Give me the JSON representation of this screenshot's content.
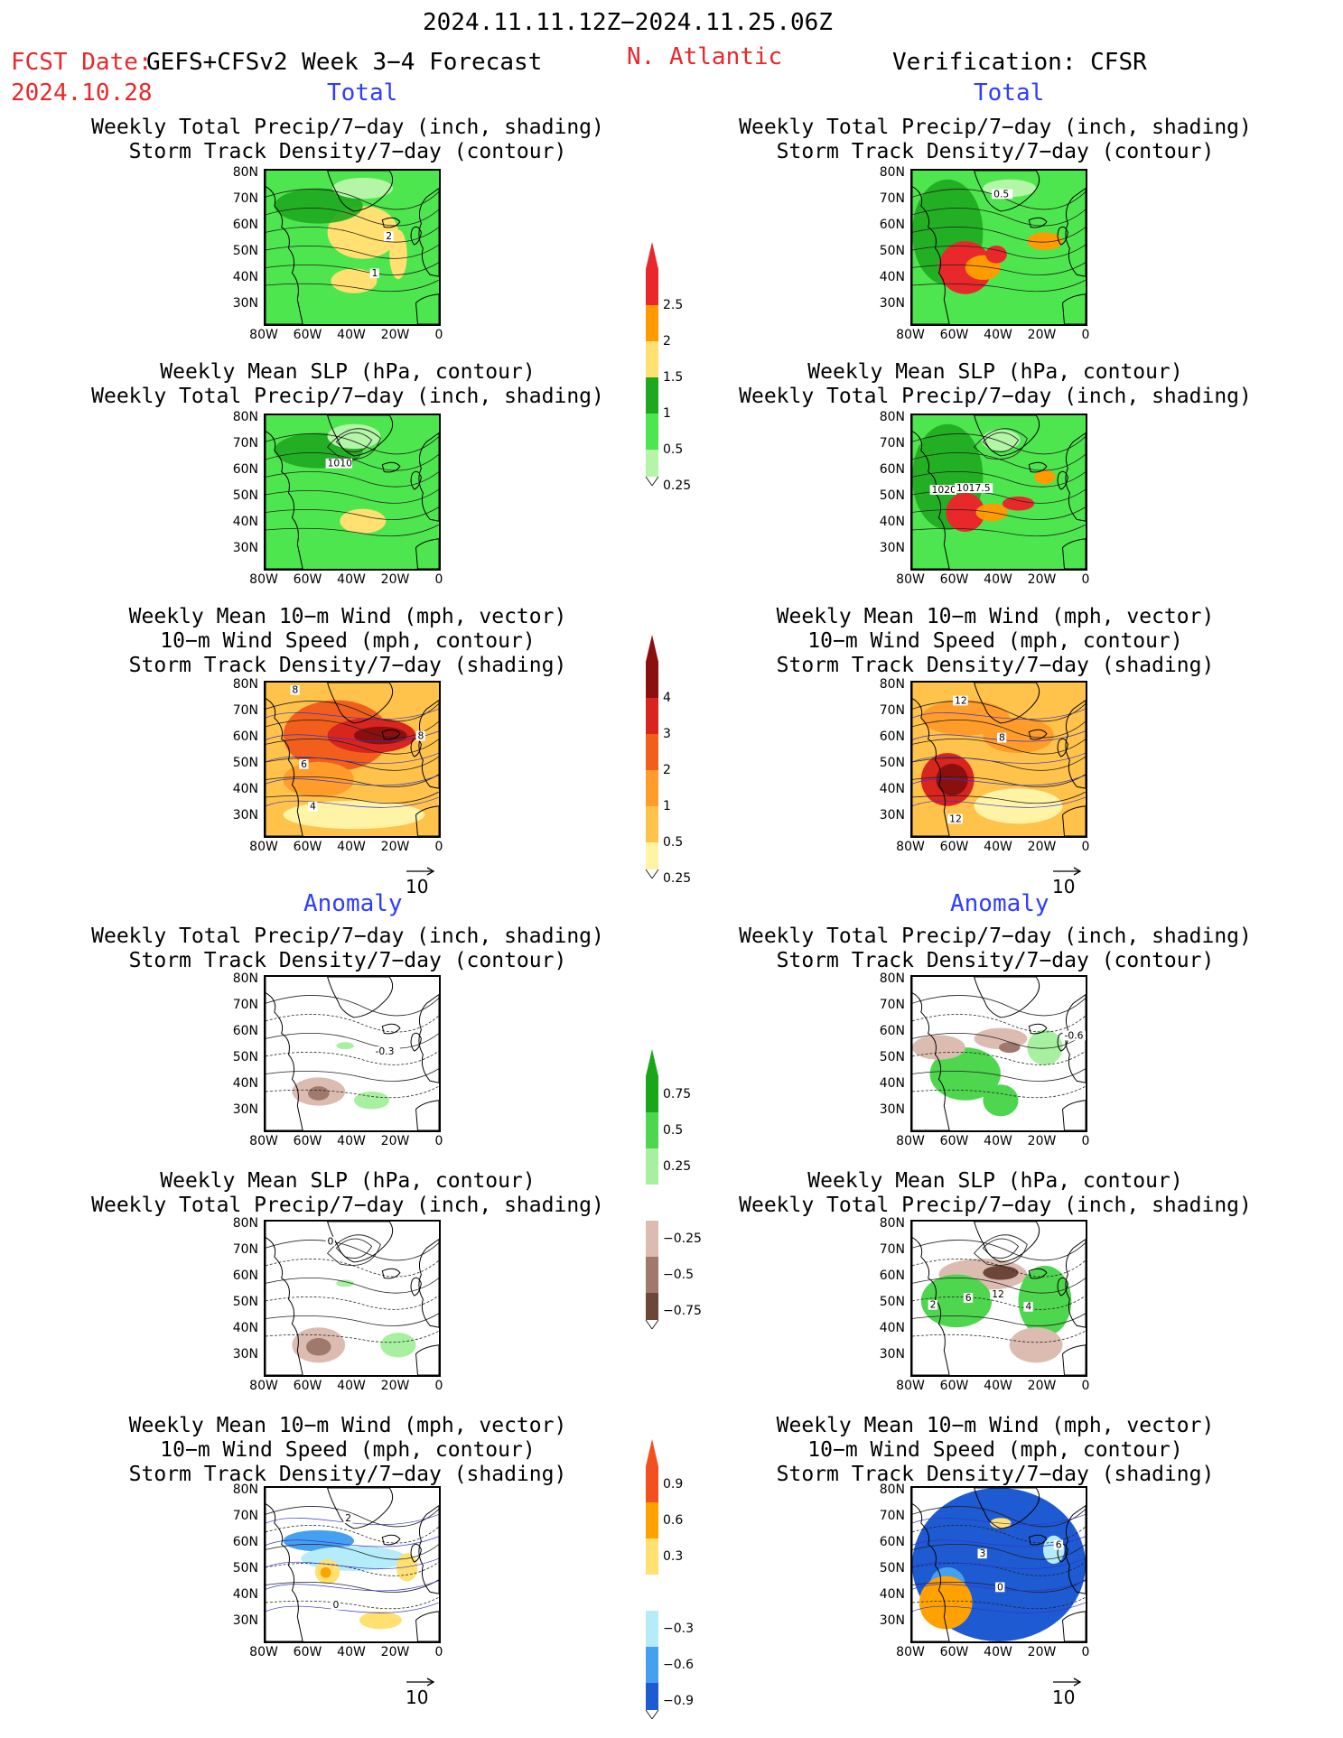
{
  "header": {
    "period": "2024.11.11.12Z−2024.11.25.06Z",
    "fcst_label": "FCST Date:",
    "fcst_model": "GEFS+CFSv2 Week 3−4 Forecast",
    "fcst_date": "2024.10.28",
    "region": "N. Atlantic",
    "verification": "Verification: CFSR"
  },
  "sections": {
    "total": "Total",
    "anomaly": "Anomaly"
  },
  "titles": {
    "precip_track": [
      "Weekly Total Precip/7−day (inch, shading)",
      "Storm Track Density/7−day (contour)"
    ],
    "slp_precip": [
      "Weekly Mean SLP (hPa, contour)",
      "Weekly Total Precip/7−day (inch, shading)"
    ],
    "wind_track": [
      "Weekly Mean 10−m Wind (mph, vector)",
      "10−m Wind Speed (mph, contour)",
      "Storm Track Density/7−day (shading)"
    ]
  },
  "axes": {
    "lat": [
      "80N",
      "70N",
      "60N",
      "50N",
      "40N",
      "30N"
    ],
    "lon": [
      "80W",
      "60W",
      "40W",
      "20W",
      "0"
    ]
  },
  "vector_ref": "10",
  "colorbars": [
    {
      "id": "precip_total",
      "labels": [
        "2.5",
        "2",
        "1.5",
        "1",
        "0.5",
        "0.25"
      ],
      "colors": [
        "#e8282a",
        "#ff9a00",
        "#ffe070",
        "#1fa81f",
        "#4ee64e",
        "#b4f5a8"
      ]
    },
    {
      "id": "track_total",
      "labels": [
        "4",
        "3",
        "2",
        "1",
        "0.5",
        "0.25"
      ],
      "colors": [
        "#8c0f0f",
        "#d8251e",
        "#f25f1c",
        "#ff9c2a",
        "#ffc24a",
        "#fff3a6"
      ]
    },
    {
      "id": "precip_anom",
      "labels": [
        "0.75",
        "0.5",
        "0.25",
        "−0.25",
        "−0.5",
        "−0.75"
      ],
      "colors": [
        "#1aa51a",
        "#4ed64e",
        "#a6f0a0",
        "#ffffff",
        "#dcbcb0",
        "#a0786c",
        "#6c4638"
      ]
    },
    {
      "id": "track_anom",
      "labels": [
        "0.9",
        "0.6",
        "0.3",
        "−0.3",
        "−0.6",
        "−0.9"
      ],
      "colors": [
        "#f2501e",
        "#ffa200",
        "#ffe070",
        "#ffffff",
        "#b4ecfa",
        "#46a0f0",
        "#1e5ad2"
      ]
    }
  ],
  "contour_labels": {
    "fc_precip_track": [
      "2",
      "1"
    ],
    "ob_precip_track": [
      "0.5"
    ],
    "fc_slp": [
      "1010"
    ],
    "ob_slp": [
      "1020",
      "1017.5"
    ],
    "fc_wind": [
      "8",
      "6",
      "8",
      "4"
    ],
    "ob_wind": [
      "12",
      "8",
      "12"
    ],
    "fc_precip_anom": [
      "-0.3"
    ],
    "ob_precip_anom": [
      "-0.6"
    ],
    "fc_slp_anom": [
      "0"
    ],
    "ob_slp_anom": [
      "2",
      "6",
      "12",
      "4"
    ],
    "fc_wind_anom": [
      "2",
      "0"
    ],
    "ob_wind_anom": [
      "3",
      "6",
      "0"
    ]
  }
}
